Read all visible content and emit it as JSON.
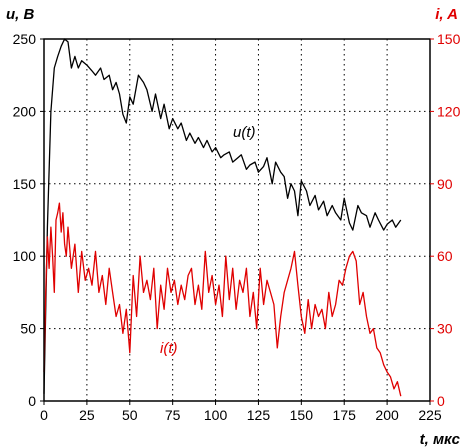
{
  "chart_data": {
    "type": "line",
    "xlabel": "t, мкс",
    "ylabel_left": "u, B",
    "ylabel_right": "i, A",
    "xlim": [
      0,
      225
    ],
    "ylim_left": [
      0,
      250
    ],
    "ylim_right": [
      0,
      150
    ],
    "x_ticks": [
      0,
      25,
      50,
      75,
      100,
      125,
      150,
      175,
      200,
      225
    ],
    "y_left_ticks": [
      0,
      50,
      100,
      150,
      200,
      250
    ],
    "y_right_ticks": [
      0,
      30,
      60,
      90,
      120,
      150
    ],
    "grid": true,
    "colors": {
      "u": "#000000",
      "i": "#e00000",
      "grid": "#000000"
    },
    "series": [
      {
        "name": "u(t)",
        "axis": "left",
        "x": [
          0,
          2,
          4,
          6,
          8,
          10,
          12,
          14,
          16,
          18,
          20,
          22,
          25,
          28,
          30,
          33,
          35,
          38,
          40,
          42,
          44,
          46,
          48,
          50,
          52,
          55,
          58,
          60,
          63,
          65,
          68,
          70,
          73,
          75,
          78,
          80,
          83,
          85,
          88,
          90,
          93,
          95,
          98,
          100,
          103,
          105,
          108,
          110,
          113,
          115,
          118,
          120,
          123,
          125,
          128,
          130,
          133,
          135,
          138,
          140,
          142,
          144,
          146,
          148,
          150,
          153,
          155,
          158,
          160,
          163,
          165,
          168,
          170,
          173,
          175,
          178,
          180,
          183,
          185,
          188,
          190,
          193,
          195,
          198,
          200,
          203,
          205,
          208
        ],
        "y": [
          5,
          120,
          200,
          230,
          238,
          245,
          250,
          248,
          230,
          238,
          230,
          235,
          232,
          228,
          225,
          230,
          222,
          225,
          215,
          220,
          212,
          198,
          192,
          210,
          205,
          225,
          220,
          215,
          200,
          212,
          195,
          205,
          188,
          195,
          188,
          192,
          180,
          185,
          178,
          182,
          175,
          180,
          172,
          175,
          168,
          170,
          172,
          165,
          168,
          170,
          160,
          163,
          165,
          158,
          162,
          168,
          150,
          165,
          158,
          155,
          140,
          150,
          145,
          128,
          152,
          145,
          135,
          142,
          132,
          138,
          128,
          135,
          130,
          125,
          140,
          123,
          118,
          135,
          130,
          128,
          120,
          130,
          125,
          118,
          122,
          125,
          120,
          125
        ]
      },
      {
        "name": "i(t)",
        "axis": "right",
        "x": [
          0,
          1,
          2,
          3,
          4,
          5,
          6,
          7,
          8,
          9,
          10,
          11,
          12,
          13,
          14,
          16,
          18,
          20,
          22,
          24,
          26,
          28,
          30,
          32,
          34,
          36,
          38,
          40,
          42,
          44,
          46,
          48,
          50,
          52,
          54,
          56,
          58,
          60,
          62,
          64,
          66,
          68,
          70,
          72,
          74,
          76,
          78,
          80,
          82,
          84,
          86,
          88,
          90,
          92,
          94,
          96,
          98,
          100,
          102,
          104,
          106,
          108,
          110,
          112,
          114,
          116,
          118,
          120,
          122,
          124,
          126,
          128,
          130,
          132,
          134,
          136,
          138,
          140,
          142,
          144,
          146,
          148,
          150,
          152,
          154,
          156,
          158,
          160,
          162,
          164,
          166,
          168,
          170,
          172,
          174,
          176,
          178,
          180,
          182,
          184,
          186,
          188,
          190,
          192,
          194,
          196,
          198,
          200,
          202,
          204,
          206,
          208
        ],
        "y": [
          12,
          45,
          68,
          55,
          72,
          60,
          45,
          75,
          78,
          82,
          70,
          78,
          65,
          60,
          72,
          55,
          65,
          45,
          62,
          50,
          55,
          48,
          62,
          45,
          52,
          40,
          55,
          45,
          35,
          40,
          28,
          38,
          20,
          52,
          35,
          60,
          45,
          50,
          42,
          55,
          30,
          48,
          38,
          55,
          45,
          50,
          40,
          48,
          42,
          52,
          55,
          40,
          48,
          38,
          62,
          45,
          52,
          40,
          48,
          35,
          60,
          42,
          55,
          38,
          50,
          45,
          55,
          35,
          45,
          30,
          55,
          40,
          50,
          45,
          40,
          22,
          35,
          45,
          50,
          55,
          62,
          48,
          35,
          28,
          42,
          30,
          40,
          35,
          38,
          30,
          45,
          35,
          40,
          50,
          48,
          55,
          60,
          62,
          58,
          40,
          45,
          35,
          28,
          30,
          22,
          20,
          15,
          12,
          10,
          5,
          8,
          2
        ]
      }
    ],
    "annotations": [
      {
        "text": "u(t)",
        "series": "u(t)"
      },
      {
        "text": "i(t)",
        "series": "i(t)"
      }
    ]
  }
}
